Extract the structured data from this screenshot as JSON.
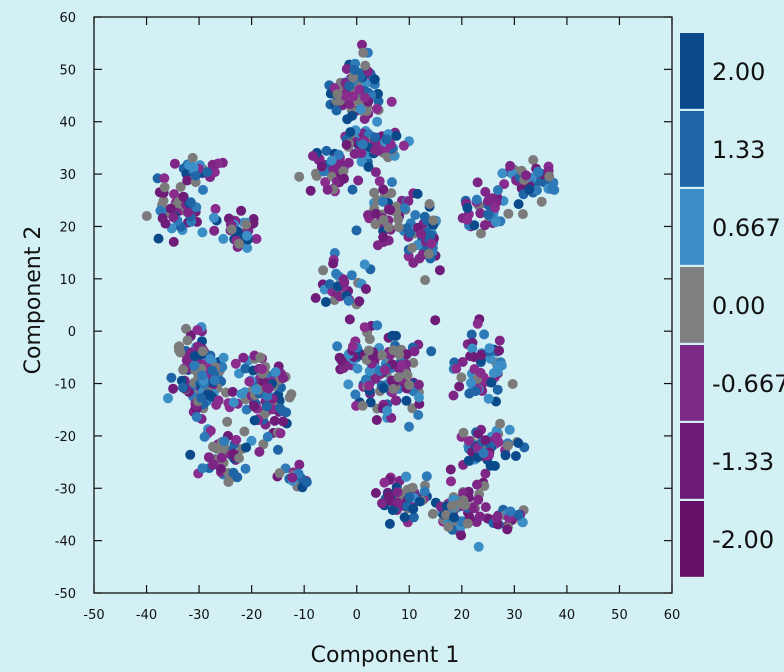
{
  "chart_data": {
    "type": "scatter",
    "title": "",
    "xlabel": "Component 1",
    "ylabel": "Component 2",
    "xlim": [
      -50,
      60
    ],
    "ylim": [
      -50,
      60
    ],
    "xticks": [
      "-50",
      "-40",
      "-30",
      "-20",
      "-10",
      "0",
      "10",
      "20",
      "30",
      "40",
      "50",
      "60"
    ],
    "yticks": [
      "-50",
      "-40",
      "-30",
      "-20",
      "-10",
      "0",
      "10",
      "20",
      "30",
      "40",
      "50",
      "60"
    ],
    "grid": false,
    "colorbar": {
      "labels": [
        "2.00",
        "1.33",
        "0.667",
        "0.00",
        "-0.667",
        "-1.33",
        "-2.00"
      ],
      "colors": [
        "#0b4a8a",
        "#1f64a5",
        "#3b8ec6",
        "#808080",
        "#7c2a86",
        "#6f1c79",
        "#66106a"
      ]
    },
    "clusters": [
      {
        "x": 0,
        "y": 46,
        "spread": [
          4,
          5
        ],
        "n": 90
      },
      {
        "x": 3,
        "y": 36,
        "spread": [
          5,
          3
        ],
        "n": 80
      },
      {
        "x": -5,
        "y": 31,
        "spread": [
          4,
          3
        ],
        "n": 40
      },
      {
        "x": -33,
        "y": 24,
        "spread": [
          4,
          5
        ],
        "n": 60
      },
      {
        "x": -29,
        "y": 31,
        "spread": [
          3,
          2
        ],
        "n": 20
      },
      {
        "x": -22,
        "y": 19,
        "spread": [
          3,
          3
        ],
        "n": 35
      },
      {
        "x": 6,
        "y": 22,
        "spread": [
          4,
          4
        ],
        "n": 50
      },
      {
        "x": 13,
        "y": 18,
        "spread": [
          3,
          5
        ],
        "n": 50
      },
      {
        "x": 24,
        "y": 23,
        "spread": [
          4,
          3
        ],
        "n": 40
      },
      {
        "x": 33,
        "y": 29,
        "spread": [
          4,
          3
        ],
        "n": 50
      },
      {
        "x": -3,
        "y": 8,
        "spread": [
          3,
          4
        ],
        "n": 40
      },
      {
        "x": -30,
        "y": -8,
        "spread": [
          4,
          7
        ],
        "n": 130
      },
      {
        "x": -18,
        "y": -12,
        "spread": [
          5,
          7
        ],
        "n": 110
      },
      {
        "x": -25,
        "y": -24,
        "spread": [
          4,
          4
        ],
        "n": 50
      },
      {
        "x": 6,
        "y": -8,
        "spread": [
          6,
          7
        ],
        "n": 120
      },
      {
        "x": 0,
        "y": -5,
        "spread": [
          3,
          3
        ],
        "n": 30
      },
      {
        "x": 24,
        "y": -6,
        "spread": [
          4,
          6
        ],
        "n": 60
      },
      {
        "x": 9,
        "y": -32,
        "spread": [
          4,
          3
        ],
        "n": 70
      },
      {
        "x": 19,
        "y": -35,
        "spread": [
          5,
          4
        ],
        "n": 70
      },
      {
        "x": 25,
        "y": -22,
        "spread": [
          4,
          4
        ],
        "n": 60
      },
      {
        "x": -12,
        "y": -28,
        "spread": [
          3,
          2
        ],
        "n": 15
      },
      {
        "x": 29,
        "y": -36,
        "spread": [
          3,
          2
        ],
        "n": 20
      }
    ]
  }
}
